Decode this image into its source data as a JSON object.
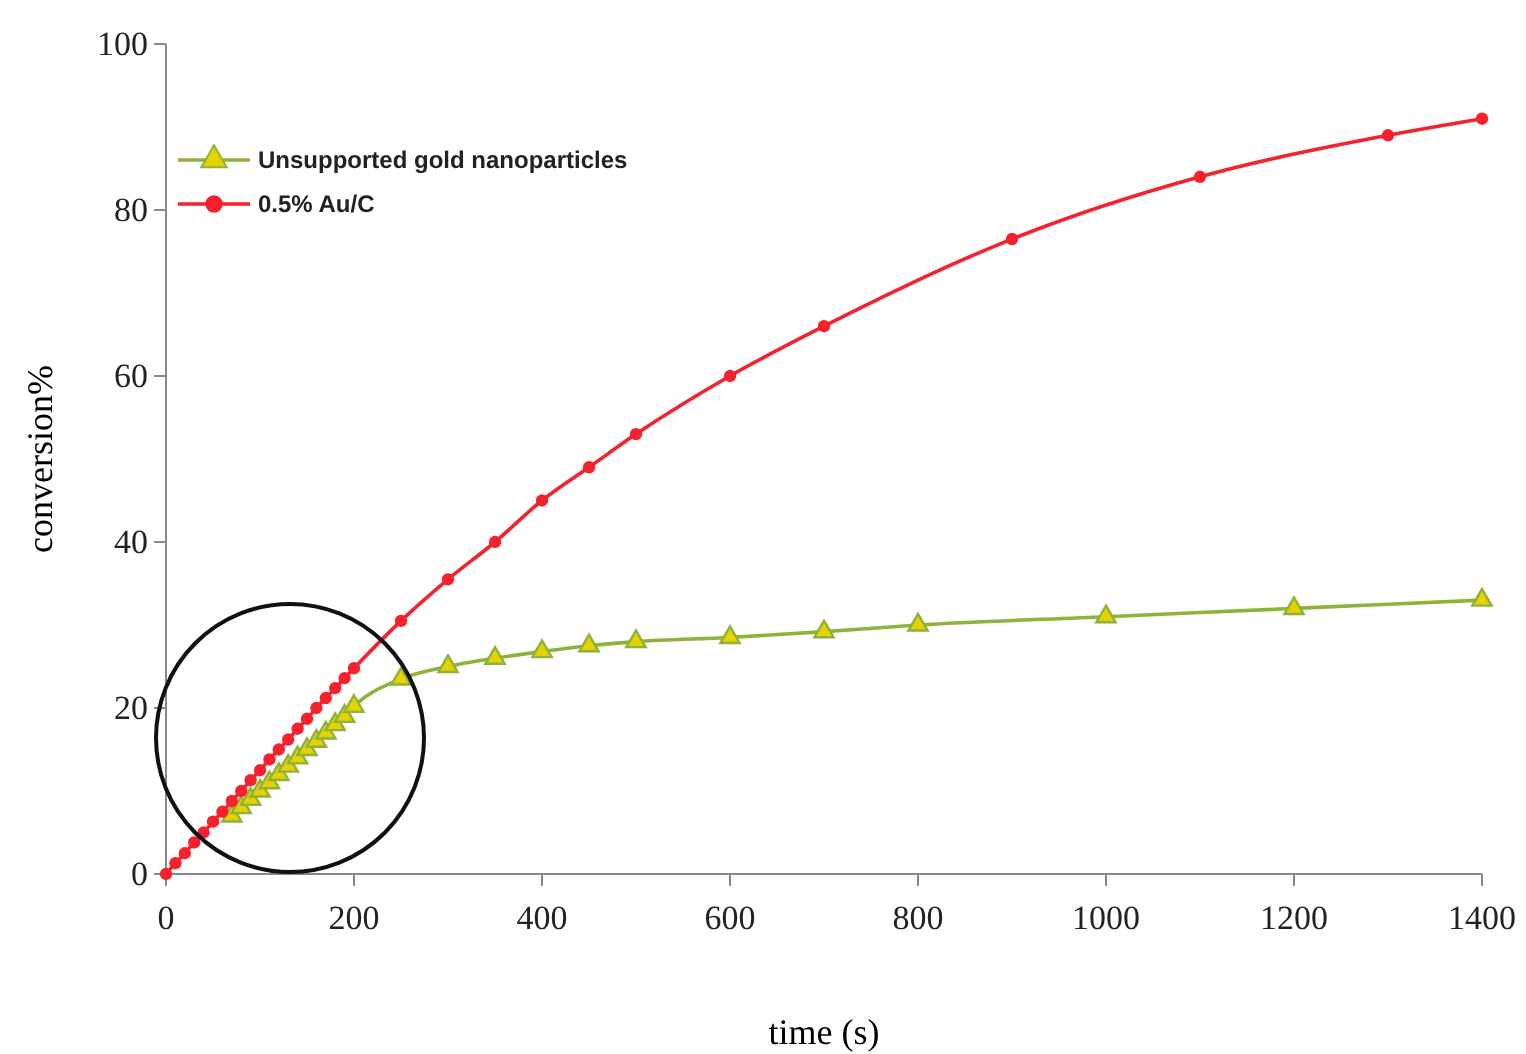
{
  "chart_data": {
    "type": "line",
    "xlabel": "time (s)",
    "ylabel": "conversion%",
    "xlim": [
      0,
      1400
    ],
    "ylim": [
      0,
      100
    ],
    "xticks": [
      0,
      200,
      400,
      600,
      800,
      1000,
      1200,
      1400
    ],
    "yticks": [
      0,
      20,
      40,
      60,
      80,
      100
    ],
    "grid": false,
    "legend": "top left",
    "line_style": "solid",
    "series": [
      {
        "name": "Unsupported gold nanoparticles",
        "color": "#8db33a",
        "marker": "triangle",
        "x": [
          70,
          80,
          90,
          100,
          110,
          120,
          130,
          140,
          150,
          160,
          170,
          180,
          190,
          200,
          250,
          300,
          350,
          400,
          450,
          500,
          600,
          700,
          800,
          1000,
          1200,
          1400
        ],
        "values": [
          7,
          8,
          9,
          10,
          11,
          12,
          13,
          14,
          15,
          16,
          17,
          18,
          19,
          20.2,
          23.5,
          25,
          26,
          26.8,
          27.5,
          28,
          28.5,
          29.2,
          30,
          31,
          32,
          33
        ]
      },
      {
        "name": "0.5% Au/C",
        "color": "#f5222d",
        "marker": "circle",
        "x": [
          0,
          10,
          20,
          30,
          40,
          50,
          60,
          70,
          80,
          90,
          100,
          110,
          120,
          130,
          140,
          150,
          160,
          170,
          180,
          190,
          200,
          250,
          300,
          350,
          400,
          450,
          500,
          600,
          700,
          900,
          1100,
          1300,
          1400
        ],
        "values": [
          0,
          1.3,
          2.5,
          3.8,
          5,
          6.3,
          7.5,
          8.8,
          10,
          11.3,
          12.5,
          13.8,
          15,
          16.2,
          17.5,
          18.7,
          20,
          21.2,
          22.4,
          23.6,
          24.8,
          30.5,
          35.5,
          40,
          45,
          49,
          53,
          60,
          66,
          76.5,
          84,
          89,
          91
        ]
      }
    ]
  }
}
